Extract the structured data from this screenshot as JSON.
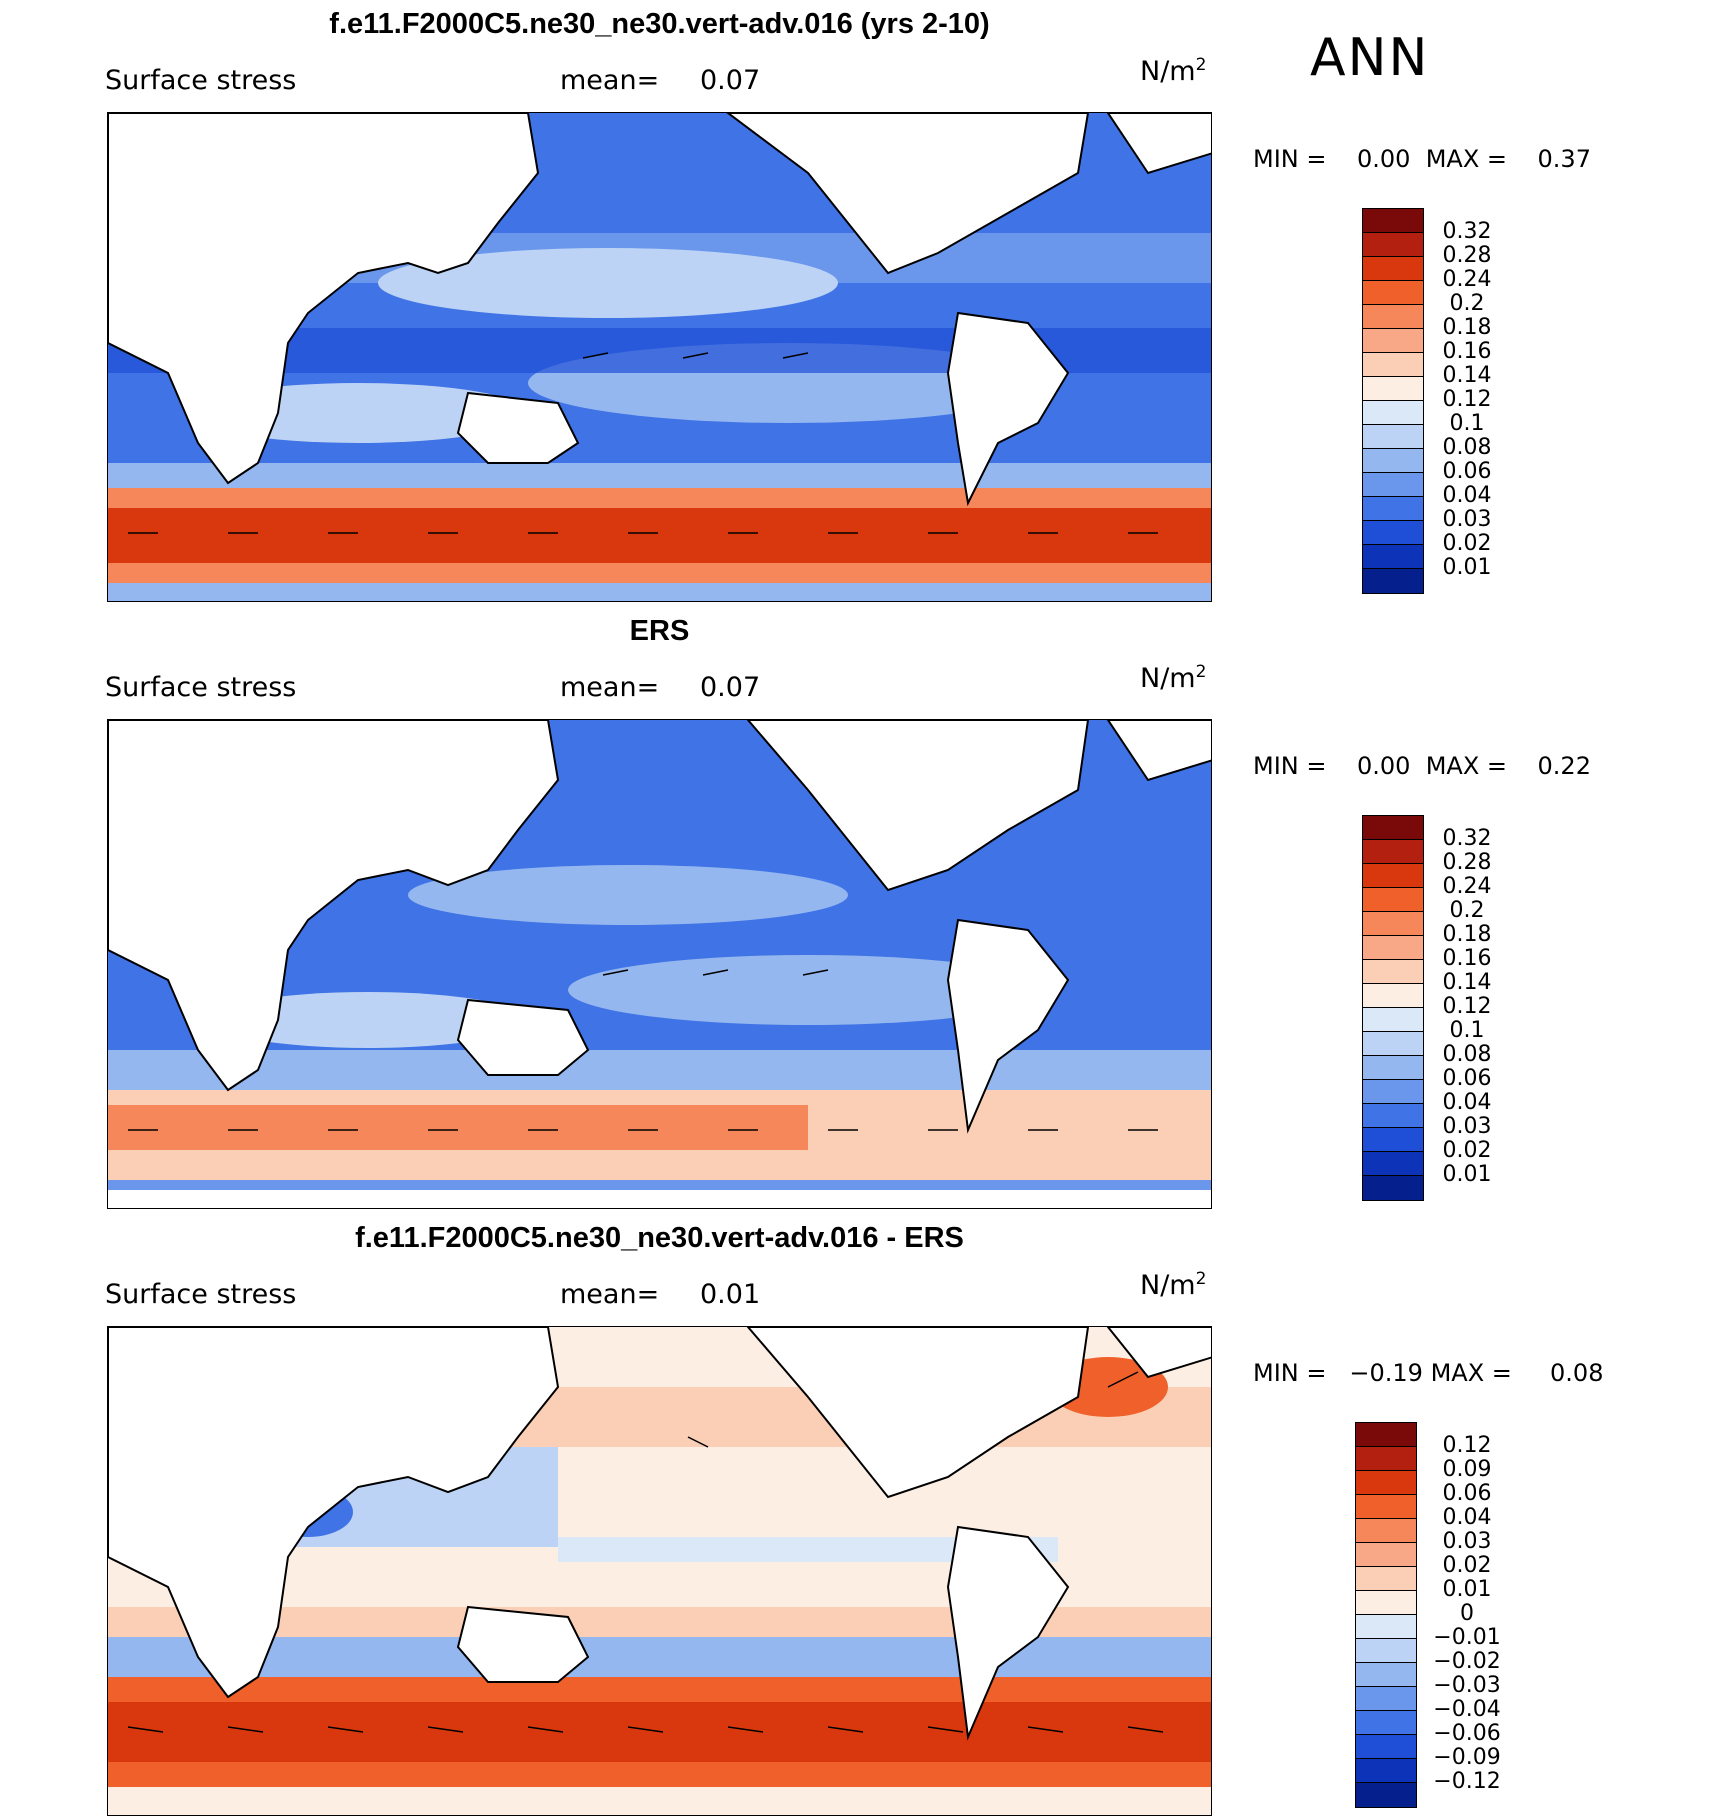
{
  "period": "ANN",
  "panels": [
    {
      "title": "f.e11.F2000C5.ne30_ne30.vert-adv.016 (yrs 2-10)",
      "variable": "Surface stress",
      "mean_label": "mean=",
      "mean_value": "0.07",
      "unit": "N/m",
      "unit_exp": "2",
      "min_label": "MIN =",
      "min_value": "0.00",
      "max_label": "MAX =",
      "max_value": "0.37",
      "colorbar_labels": [
        "0.32",
        "0.28",
        "0.24",
        "0.2",
        "0.18",
        "0.16",
        "0.14",
        "0.12",
        "0.1",
        "0.08",
        "0.06",
        "0.04",
        "0.03",
        "0.02",
        "0.01"
      ]
    },
    {
      "title": "ERS",
      "variable": "Surface stress",
      "mean_label": "mean=",
      "mean_value": "0.07",
      "unit": "N/m",
      "unit_exp": "2",
      "min_label": "MIN =",
      "min_value": "0.00",
      "max_label": "MAX =",
      "max_value": "0.22",
      "colorbar_labels": [
        "0.32",
        "0.28",
        "0.24",
        "0.2",
        "0.18",
        "0.16",
        "0.14",
        "0.12",
        "0.1",
        "0.08",
        "0.06",
        "0.04",
        "0.03",
        "0.02",
        "0.01"
      ]
    },
    {
      "title": "f.e11.F2000C5.ne30_ne30.vert-adv.016 - ERS",
      "variable": "Surface stress",
      "mean_label": "mean=",
      "mean_value": "0.01",
      "unit": "N/m",
      "unit_exp": "2",
      "min_label": "MIN =",
      "min_value": "−0.19",
      "max_label": "MAX =",
      "max_value": "0.08",
      "colorbar_labels": [
        "0.12",
        "0.09",
        "0.06",
        "0.04",
        "0.03",
        "0.02",
        "0.01",
        "0",
        "−0.01",
        "−0.02",
        "−0.03",
        "−0.04",
        "−0.06",
        "−0.09",
        "−0.12"
      ]
    }
  ],
  "colors": {
    "seq_palette": [
      "#7a0a0a",
      "#b3200f",
      "#d9380f",
      "#f0602a",
      "#f5875a",
      "#f8a887",
      "#fbcfb5",
      "#fdeee3",
      "#dbe8f8",
      "#bcd3f5",
      "#94b7f0",
      "#6a97ec",
      "#3f73e6",
      "#1f4fd6",
      "#0d33b8",
      "#05208c"
    ],
    "div_palette": [
      "#7a0a0a",
      "#b3200f",
      "#d9380f",
      "#f0602a",
      "#f5875a",
      "#f8a887",
      "#fbcfb5",
      "#fdeee3",
      "#dbe8f8",
      "#bcd3f5",
      "#94b7f0",
      "#6a97ec",
      "#3f73e6",
      "#1f4fd6",
      "#0d33b8",
      "#05208c"
    ]
  }
}
